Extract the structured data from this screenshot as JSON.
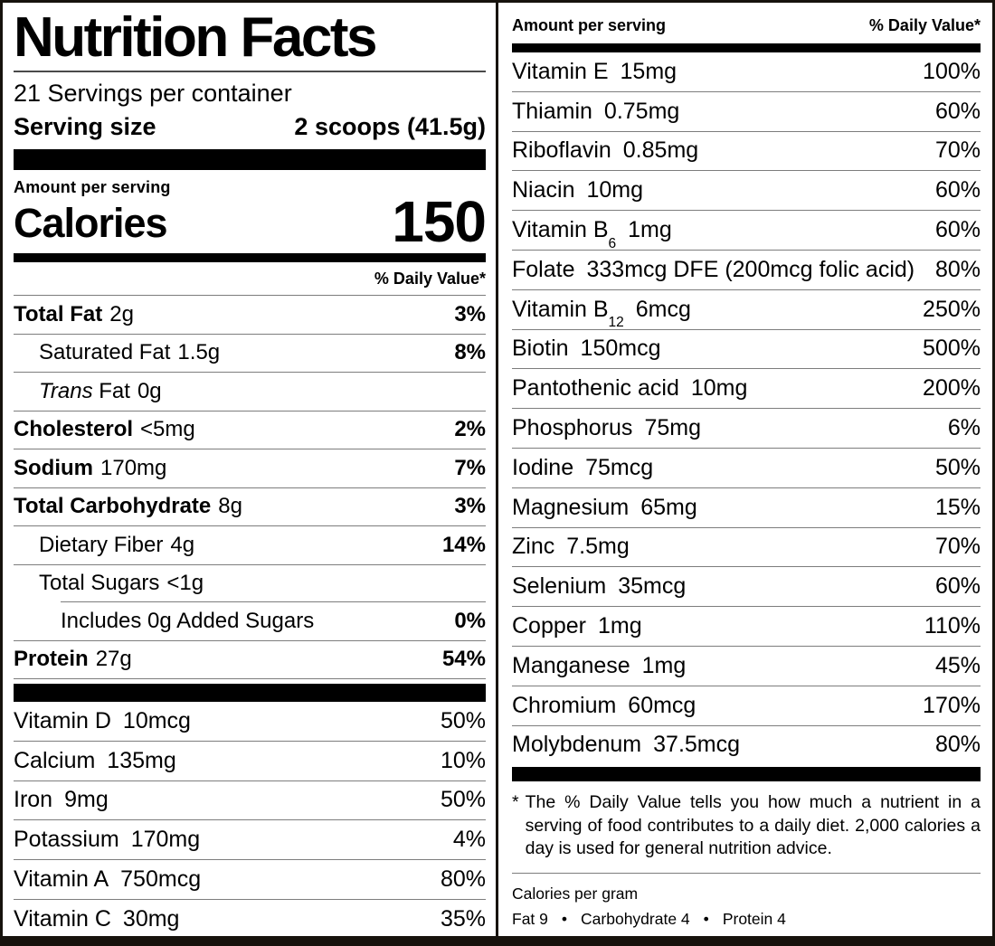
{
  "colors": {
    "text": "#000000",
    "separator": "#7d7d7d",
    "bar": "#000000"
  },
  "left": {
    "title": "Nutrition Facts",
    "servings_per_container": "21 Servings per container",
    "serving_size_label": "Serving size",
    "serving_size_value": "2 scoops (41.5g)",
    "amount_per_serving": "Amount per serving",
    "calories_label": "Calories",
    "calories_value": "150",
    "daily_value_header": "% Daily Value*",
    "nutrients": [
      {
        "name": "Total Fat",
        "amount": "2g",
        "dv": "3%",
        "bold": true,
        "indent": 0
      },
      {
        "name": "Saturated Fat",
        "amount": "1.5g",
        "dv": "8%",
        "indent": 1
      },
      {
        "name_italic": "Trans",
        "name": "Fat",
        "amount": "0g",
        "dv": "",
        "indent": 1
      },
      {
        "name": "Cholesterol",
        "amount": "<5mg",
        "dv": "2%",
        "bold": true,
        "indent": 0
      },
      {
        "name": "Sodium",
        "amount": "170mg",
        "dv": "7%",
        "bold": true,
        "indent": 0
      },
      {
        "name": "Total Carbohydrate",
        "amount": "8g",
        "dv": "3%",
        "bold": true,
        "indent": 0
      },
      {
        "name": "Dietary Fiber",
        "amount": "4g",
        "dv": "14%",
        "indent": 1
      },
      {
        "name": "Total Sugars",
        "amount": "<1g",
        "dv": "",
        "indent": 1
      },
      {
        "name": "Includes 0g Added Sugars",
        "amount": "",
        "dv": "0%",
        "indent": 2
      },
      {
        "name": "Protein",
        "amount": "27g",
        "dv": "54%",
        "bold": true,
        "indent": 0
      }
    ],
    "vitamins": [
      {
        "name": "Vitamin D",
        "amount": "10mcg",
        "dv": "50%"
      },
      {
        "name": "Calcium",
        "amount": "135mg",
        "dv": "10%"
      },
      {
        "name": "Iron",
        "amount": "9mg",
        "dv": "50%"
      },
      {
        "name": "Potassium",
        "amount": "170mg",
        "dv": "4%"
      },
      {
        "name": "Vitamin A",
        "amount": "750mcg",
        "dv": "80%"
      },
      {
        "name": "Vitamin C",
        "amount": "30mg",
        "dv": "35%"
      }
    ]
  },
  "right": {
    "header_left": "Amount per serving",
    "header_right": "% Daily Value*",
    "rows": [
      {
        "name": "Vitamin E",
        "amount": "15mg",
        "dv": "100%"
      },
      {
        "name": "Thiamin",
        "amount": "0.75mg",
        "dv": "60%"
      },
      {
        "name": "Riboflavin",
        "amount": "0.85mg",
        "dv": "70%"
      },
      {
        "name": "Niacin",
        "amount": "10mg",
        "dv": "60%"
      },
      {
        "name": "Vitamin B",
        "sub": "6",
        "amount": "1mg",
        "dv": "60%"
      },
      {
        "name": "Folate",
        "amount": "333mcg DFE (200mcg folic acid)",
        "dv": "80%"
      },
      {
        "name": "Vitamin B",
        "sub": "12",
        "amount": "6mcg",
        "dv": "250%"
      },
      {
        "name": "Biotin",
        "amount": "150mcg",
        "dv": "500%"
      },
      {
        "name": "Pantothenic acid",
        "amount": "10mg",
        "dv": "200%"
      },
      {
        "name": "Phosphorus",
        "amount": "75mg",
        "dv": "6%"
      },
      {
        "name": "Iodine",
        "amount": "75mcg",
        "dv": "50%"
      },
      {
        "name": "Magnesium",
        "amount": "65mg",
        "dv": "15%"
      },
      {
        "name": "Zinc",
        "amount": "7.5mg",
        "dv": "70%"
      },
      {
        "name": "Selenium",
        "amount": "35mcg",
        "dv": "60%"
      },
      {
        "name": "Copper",
        "amount": "1mg",
        "dv": "110%"
      },
      {
        "name": "Manganese",
        "amount": "1mg",
        "dv": "45%"
      },
      {
        "name": "Chromium",
        "amount": "60mcg",
        "dv": "170%"
      },
      {
        "name": "Molybdenum",
        "amount": "37.5mcg",
        "dv": "80%"
      }
    ],
    "footnote_marker": "*",
    "footnote": "The % Daily Value tells you how much a nutrient in a serving of food contributes to a daily diet. 2,000 calories a day is used for general nutrition advice.",
    "calories_per_gram": {
      "label": "Calories per gram",
      "bullet": "•",
      "items": [
        "Fat 9",
        "Carbohydrate 4",
        "Protein 4"
      ]
    }
  }
}
